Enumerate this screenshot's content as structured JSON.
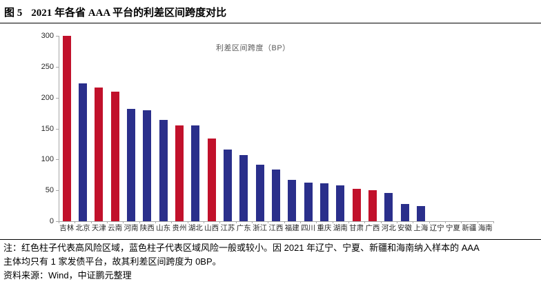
{
  "figure": {
    "label": "图 5",
    "title": "2021 年各省 AAA 平台的利差区间跨度对比"
  },
  "chart_data": {
    "type": "bar",
    "title": "利差区间跨度（BP）",
    "xlabel": "",
    "ylabel": "",
    "ylim": [
      0,
      300
    ],
    "y_ticks": [
      0,
      50,
      100,
      150,
      200,
      250,
      300
    ],
    "grid": false,
    "legend_position": "top-center-inside",
    "categories": [
      "吉林",
      "北京",
      "天津",
      "云南",
      "河南",
      "陕西",
      "山东",
      "贵州",
      "湖北",
      "山西",
      "江苏",
      "广东",
      "浙江",
      "江西",
      "福建",
      "四川",
      "重庆",
      "湖南",
      "甘肃",
      "广西",
      "河北",
      "安徽",
      "上海",
      "辽宁",
      "宁夏",
      "新疆",
      "海南"
    ],
    "values": [
      300,
      223,
      216,
      210,
      182,
      179,
      164,
      155,
      155,
      134,
      116,
      107,
      92,
      84,
      67,
      62,
      61,
      58,
      52,
      50,
      46,
      28,
      25,
      0,
      0,
      0,
      0
    ],
    "bar_risk": [
      "high",
      "normal",
      "high",
      "high",
      "normal",
      "normal",
      "normal",
      "high",
      "normal",
      "high",
      "normal",
      "normal",
      "normal",
      "normal",
      "normal",
      "normal",
      "normal",
      "normal",
      "high",
      "high",
      "normal",
      "normal",
      "normal",
      "normal",
      "normal",
      "normal",
      "normal"
    ],
    "colors": {
      "high_risk_red": "#C1112B",
      "normal_risk_blue": "#2A2F8B",
      "axis_gray": "#A6A6A6"
    }
  },
  "notes": {
    "lines": [
      "注：红色柱子代表高风险区域，蓝色柱子代表区域风险一般或较小。因 2021 年辽宁、宁夏、新疆和海南纳入样本的 AAA",
      "主体均只有 1 家发债平台，故其利差区间跨度为 0BP。"
    ],
    "source": "资料来源：Wind，中证鹏元整理"
  }
}
